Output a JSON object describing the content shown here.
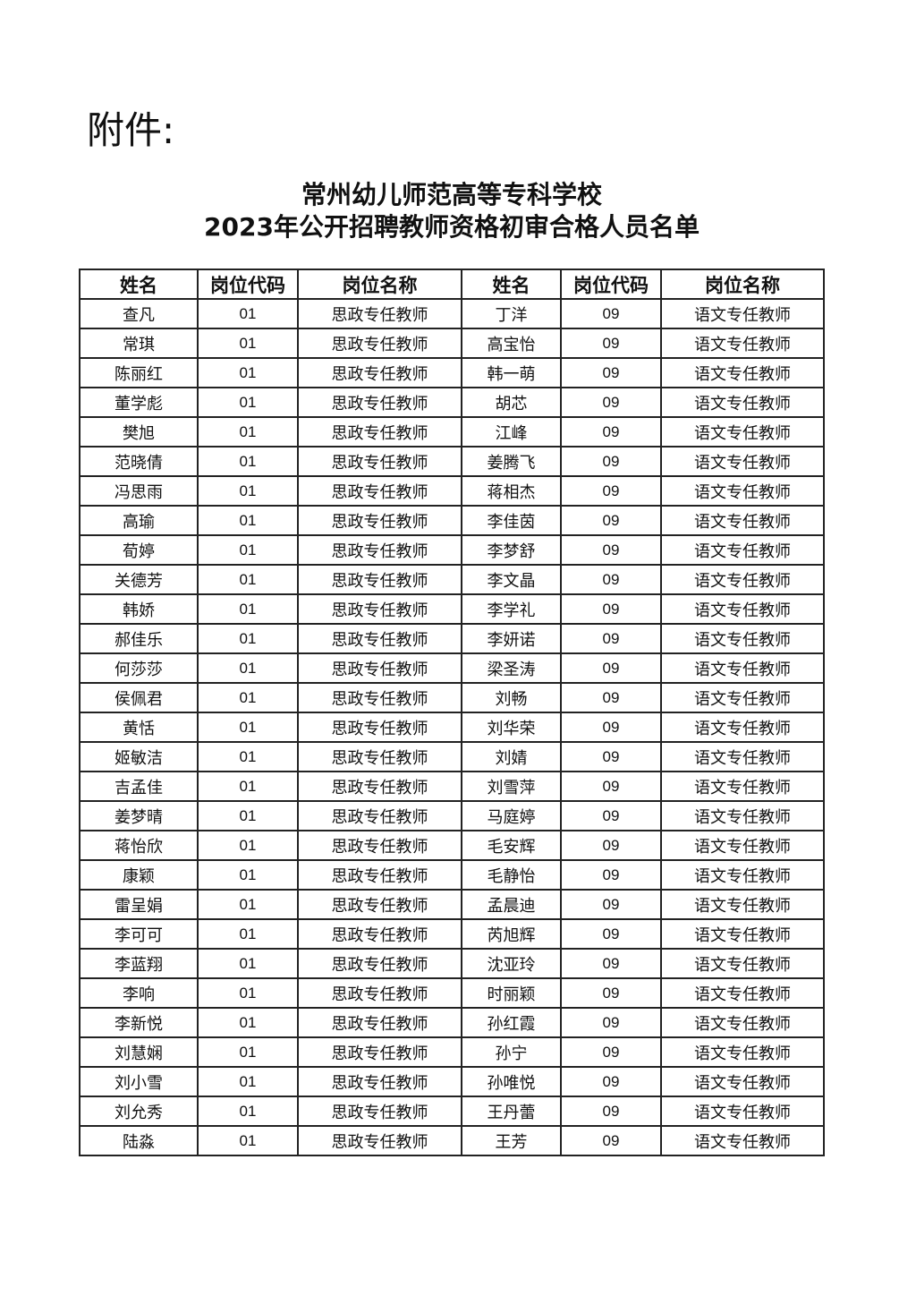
{
  "attachment_label": "附件:",
  "title_line1": "常州幼儿师范高等专科学校",
  "title_line2": "2023年公开招聘教师资格初审合格人员名单",
  "table": {
    "headers": [
      "姓名",
      "岗位代码",
      "岗位名称",
      "姓名",
      "岗位代码",
      "岗位名称"
    ],
    "left": {
      "code": "01",
      "position": "思政专任教师",
      "names": [
        "查凡",
        "常琪",
        "陈丽红",
        "董学彪",
        "樊旭",
        "范晓倩",
        "冯思雨",
        "高瑜",
        "荀婷",
        "关德芳",
        "韩娇",
        "郝佳乐",
        "何莎莎",
        "侯佩君",
        "黄恬",
        "姬敏洁",
        "吉孟佳",
        "姜梦晴",
        "蒋怡欣",
        "康颖",
        "雷呈娟",
        "李可可",
        "李蓝翔",
        "李响",
        "李新悦",
        "刘慧娴",
        "刘小雪",
        "刘允秀",
        "陆淼"
      ]
    },
    "right": {
      "code": "09",
      "position": "语文专任教师",
      "names": [
        "丁洋",
        "高宝怡",
        "韩一萌",
        "胡芯",
        "江峰",
        "姜腾飞",
        "蒋相杰",
        "李佳茵",
        "李梦舒",
        "李文晶",
        "李学礼",
        "李妍诺",
        "梁圣涛",
        "刘畅",
        "刘华荣",
        "刘婧",
        "刘雪萍",
        "马庭婷",
        "毛安辉",
        "毛静怡",
        "孟晨迪",
        "芮旭辉",
        "沈亚玲",
        "时丽颖",
        "孙红霞",
        "孙宁",
        "孙唯悦",
        "王丹蕾",
        "王芳"
      ]
    }
  }
}
